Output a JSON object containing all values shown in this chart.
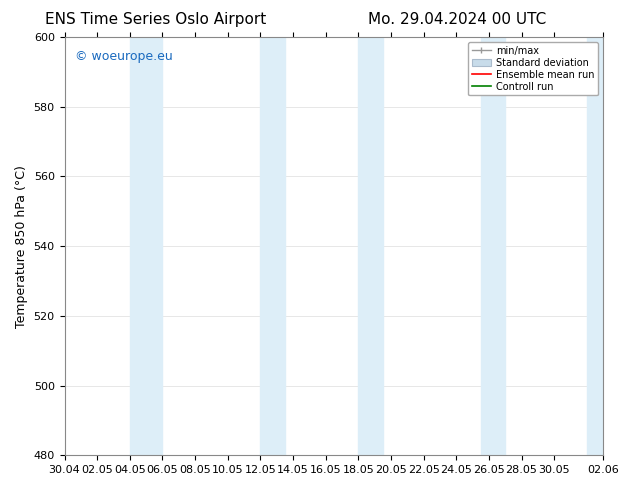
{
  "title_left": "ENS Time Series Oslo Airport",
  "title_right": "Mo. 29.04.2024 00 UTC",
  "ylabel": "Temperature 850 hPa (°C)",
  "ylim": [
    480,
    600
  ],
  "yticks": [
    480,
    500,
    520,
    540,
    560,
    580,
    600
  ],
  "xlim_start": 0,
  "xlim_end": 33,
  "xtick_labels": [
    "30.04",
    "02.05",
    "04.05",
    "06.05",
    "08.05",
    "10.05",
    "12.05",
    "14.05",
    "16.05",
    "18.05",
    "20.05",
    "22.05",
    "24.05",
    "26.05",
    "28.05",
    "30.05",
    "02.06"
  ],
  "xtick_positions": [
    0,
    2,
    4,
    6,
    8,
    10,
    12,
    14,
    16,
    18,
    20,
    22,
    24,
    26,
    28,
    30,
    33
  ],
  "band_centers": [
    5,
    6,
    12,
    13,
    18,
    19,
    25,
    26,
    32,
    33
  ],
  "band_color": "#ddeef8",
  "watermark": "© woeurope.eu",
  "watermark_color": "#1a6abf",
  "bg_color": "#ffffff",
  "legend_labels": [
    "min/max",
    "Standard deviation",
    "Ensemble mean run",
    "Controll run"
  ],
  "legend_colors": [
    "#999999",
    "#bbccdd",
    "#ff0000",
    "#008000"
  ],
  "grid_color": "#dddddd",
  "title_fontsize": 11,
  "axis_label_fontsize": 9,
  "tick_fontsize": 8
}
